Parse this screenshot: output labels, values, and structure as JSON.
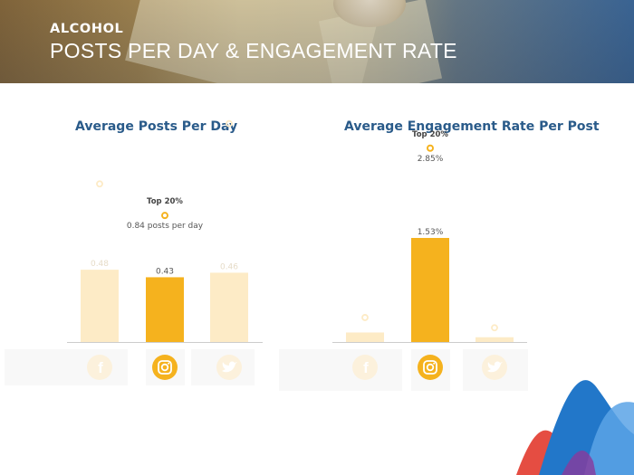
{
  "header": {
    "category": "ALCOHOL",
    "title": "POSTS PER DAY & ENGAGEMENT RATE"
  },
  "colors": {
    "accent": "#f5b21e",
    "muted_bar": "#fdebc6",
    "title_blue": "#2a5b8a",
    "axis": "#cccccc"
  },
  "chart_data": [
    {
      "type": "bar",
      "title": "Average Posts Per Day",
      "categories": [
        "Facebook",
        "Instagram",
        "Twitter"
      ],
      "icons": [
        "facebook-icon",
        "instagram-icon",
        "twitter-icon"
      ],
      "values": [
        0.48,
        0.43,
        0.46
      ],
      "value_labels": [
        "0.48",
        "0.43",
        "0.46"
      ],
      "highlight_index": 1,
      "top20_markers": [
        1.05,
        0.84,
        1.45
      ],
      "top20_label": "Top 20%",
      "top20_value_label": "0.84 posts per day",
      "ylim": [
        0,
        1.55
      ]
    },
    {
      "type": "bar",
      "title": "Average Engagement Rate Per Post",
      "categories": [
        "Facebook",
        "Instagram",
        "Twitter"
      ],
      "icons": [
        "facebook-icon",
        "instagram-icon",
        "twitter-icon"
      ],
      "values": [
        0.14,
        1.53,
        0.07
      ],
      "value_labels": [
        "",
        "1.53%",
        ""
      ],
      "highlight_index": 1,
      "top20_markers": [
        0.36,
        2.85,
        0.21
      ],
      "top20_label": "Top 20%",
      "top20_value_label": "2.85%",
      "ylim": [
        0,
        2.9
      ]
    }
  ]
}
